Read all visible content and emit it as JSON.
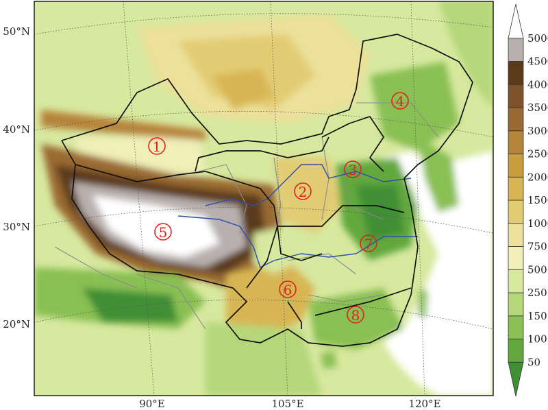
{
  "map": {
    "lat_labels": [
      "50°N",
      "40°N",
      "30°N",
      "20°N"
    ],
    "lon_labels": [
      "90°E",
      "105°E",
      "120°E"
    ],
    "regions": [
      "1",
      "2",
      "3",
      "4",
      "5",
      "6",
      "7",
      "8"
    ]
  },
  "colorbar": {
    "levels": [
      "50",
      "100",
      "150",
      "250",
      "500",
      "750",
      "1000",
      "1500",
      "2000",
      "2500",
      "3000",
      "3500",
      "4000",
      "4500",
      "5000"
    ],
    "colors": [
      "#3f8f35",
      "#62a83d",
      "#89c053",
      "#b5d77a",
      "#d7e89f",
      "#f0efb8",
      "#ece09a",
      "#e2cc73",
      "#d8b552",
      "#c99c3e",
      "#b6843a",
      "#9a6a32",
      "#7e5228",
      "#5b3a1a",
      "#b8b0ae",
      "#ffffff"
    ],
    "unit": ""
  },
  "colors": {
    "border": "#111111",
    "province": "#8a8a8a",
    "river": "#2a4fb0",
    "region_number": "#e0221f"
  }
}
